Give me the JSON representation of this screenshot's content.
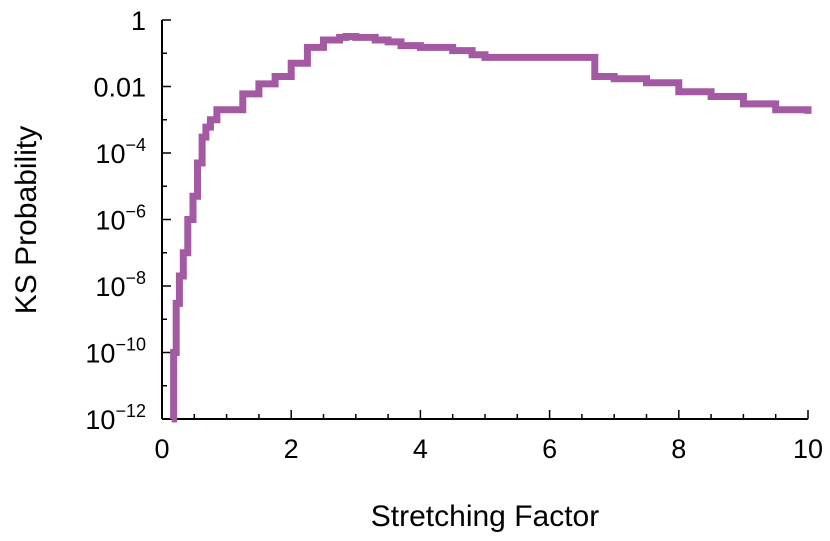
{
  "chart_data": {
    "type": "line",
    "title": "",
    "xlabel": "Stretching Factor",
    "ylabel": "KS Probability",
    "xlim": [
      0,
      10
    ],
    "ylim_log10": [
      -12,
      0
    ],
    "y_scale": "log",
    "grid": false,
    "legend": "none",
    "line_color": "#a35aa3",
    "x_ticks": [
      {
        "value": 0,
        "label": "0"
      },
      {
        "value": 2,
        "label": "2"
      },
      {
        "value": 4,
        "label": "4"
      },
      {
        "value": 6,
        "label": "6"
      },
      {
        "value": 8,
        "label": "8"
      },
      {
        "value": 10,
        "label": "10"
      }
    ],
    "y_ticks": [
      {
        "value": 1,
        "base": "1",
        "exp": ""
      },
      {
        "value": 0.01,
        "base": "0.01",
        "exp": ""
      },
      {
        "value": 0.0001,
        "base": "10",
        "exp": "−4"
      },
      {
        "value": 1e-06,
        "base": "10",
        "exp": "−6"
      },
      {
        "value": 1e-08,
        "base": "10",
        "exp": "−8"
      },
      {
        "value": 1e-10,
        "base": "10",
        "exp": "−10"
      },
      {
        "value": 1e-12,
        "base": "10",
        "exp": "−12"
      }
    ],
    "series": [
      {
        "x": [
          0.15,
          0.18,
          0.22,
          0.27,
          0.33,
          0.4,
          0.48,
          0.55,
          0.62,
          0.68,
          0.75,
          0.85,
          1.0,
          1.25,
          1.5,
          1.75,
          2.0,
          2.25,
          2.5,
          2.75,
          2.85,
          3.0,
          3.3,
          3.5,
          3.7,
          4.0,
          4.3,
          4.5,
          4.8,
          5.0,
          5.5,
          6.0,
          6.5,
          6.7,
          7.0,
          7.5,
          8.0,
          8.5,
          9.0,
          9.5,
          10.0
        ],
        "y": [
          1e-12,
          1e-10,
          3e-09,
          2e-08,
          1e-07,
          1e-06,
          5e-06,
          5e-05,
          0.0003,
          0.0006,
          0.001,
          0.002,
          0.002,
          0.006,
          0.012,
          0.02,
          0.05,
          0.15,
          0.25,
          0.3,
          0.32,
          0.3,
          0.25,
          0.22,
          0.17,
          0.15,
          0.15,
          0.12,
          0.09,
          0.075,
          0.075,
          0.075,
          0.075,
          0.02,
          0.017,
          0.013,
          0.007,
          0.005,
          0.003,
          0.002,
          0.0015
        ]
      }
    ]
  }
}
